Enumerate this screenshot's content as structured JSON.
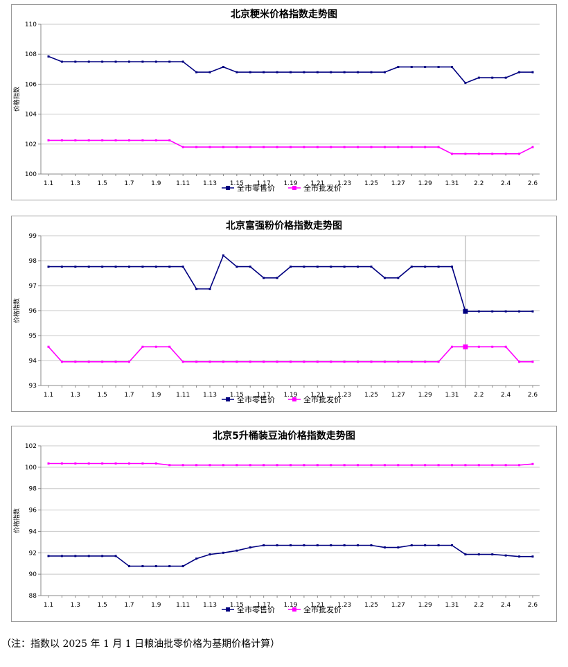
{
  "chart_data": [
    {
      "type": "line",
      "title": "北京粳米价格指数走势图",
      "ylabel": "价格指数",
      "xlabel": "",
      "ylim": [
        100,
        110
      ],
      "yticks": [
        "100",
        "102",
        "104",
        "106",
        "108",
        "110"
      ],
      "x_tick_labels": [
        "1.1",
        "1.3",
        "1.5",
        "1.7",
        "1.9",
        "1.11",
        "1.13",
        "1.15",
        "1.17",
        "1.19",
        "1.21",
        "1.23",
        "1.25",
        "1.27",
        "1.29",
        "1.31",
        "2.2",
        "2.4",
        "2.6"
      ],
      "grid": true,
      "legend_position": "bottom",
      "series": [
        {
          "name": "全市零售价",
          "color": "#000080",
          "marker": "square",
          "values": [
            107.85,
            107.5,
            107.5,
            107.5,
            107.5,
            107.5,
            107.5,
            107.5,
            107.5,
            107.5,
            107.5,
            106.8,
            106.8,
            107.15,
            106.8,
            106.8,
            106.8,
            106.8,
            106.8,
            106.8,
            106.8,
            106.8,
            106.8,
            106.8,
            106.8,
            106.8,
            107.15,
            107.15,
            107.15,
            107.15,
            107.15,
            106.08,
            106.43,
            106.43,
            106.43,
            106.8,
            106.8
          ]
        },
        {
          "name": "全市批发价",
          "color": "#ff00ff",
          "marker": "square",
          "values": [
            102.25,
            102.25,
            102.25,
            102.25,
            102.25,
            102.25,
            102.25,
            102.25,
            102.25,
            102.25,
            101.8,
            101.8,
            101.8,
            101.8,
            101.8,
            101.8,
            101.8,
            101.8,
            101.8,
            101.8,
            101.8,
            101.8,
            101.8,
            101.8,
            101.8,
            101.8,
            101.8,
            101.8,
            101.8,
            101.8,
            101.35,
            101.35,
            101.35,
            101.35,
            101.35,
            101.35,
            101.8
          ]
        }
      ]
    },
    {
      "type": "line",
      "title": "北京富强粉价格指数走势图",
      "ylabel": "价格指数",
      "xlabel": "",
      "ylim": [
        93,
        99
      ],
      "yticks": [
        "93",
        "94",
        "95",
        "96",
        "97",
        "98",
        "99"
      ],
      "x_tick_labels": [
        "1.1",
        "1.3",
        "1.5",
        "1.7",
        "1.9",
        "1.11",
        "1.13",
        "1.15",
        "1.17",
        "1.19",
        "1.21",
        "1.23",
        "1.25",
        "1.27",
        "1.29",
        "1.31",
        "2.2",
        "2.4",
        "2.6"
      ],
      "grid": true,
      "legend_position": "bottom",
      "highlight_index": 31,
      "series": [
        {
          "name": "全市零售价",
          "color": "#000080",
          "marker": "square",
          "values": [
            97.76,
            97.76,
            97.76,
            97.76,
            97.76,
            97.76,
            97.76,
            97.76,
            97.76,
            97.76,
            97.76,
            96.87,
            96.87,
            98.21,
            97.76,
            97.76,
            97.31,
            97.31,
            97.76,
            97.76,
            97.76,
            97.76,
            97.76,
            97.76,
            97.76,
            97.31,
            97.31,
            97.76,
            97.76,
            97.76,
            97.76,
            95.97,
            95.97,
            95.97,
            95.97,
            95.97,
            95.97
          ]
        },
        {
          "name": "全市批发价",
          "color": "#ff00ff",
          "marker": "square",
          "values": [
            94.55,
            93.95,
            93.95,
            93.95,
            93.95,
            93.95,
            93.95,
            94.55,
            94.55,
            94.55,
            93.95,
            93.95,
            93.95,
            93.95,
            93.95,
            93.95,
            93.95,
            93.95,
            93.95,
            93.95,
            93.95,
            93.95,
            93.95,
            93.95,
            93.95,
            93.95,
            93.95,
            93.95,
            93.95,
            93.95,
            94.55,
            94.55,
            94.55,
            94.55,
            94.55,
            93.95,
            93.95
          ]
        }
      ]
    },
    {
      "type": "line",
      "title": "北京5升桶装豆油价格指数走势图",
      "ylabel": "价格指数",
      "xlabel": "",
      "ylim": [
        88,
        102
      ],
      "yticks": [
        "88",
        "90",
        "92",
        "94",
        "96",
        "98",
        "100",
        "102"
      ],
      "x_tick_labels": [
        "1.1",
        "1.3",
        "1.5",
        "1.7",
        "1.9",
        "1.11",
        "1.13",
        "1.15",
        "1.17",
        "1.19",
        "1.21",
        "1.23",
        "1.25",
        "1.27",
        "1.29",
        "1.31",
        "2.2",
        "2.4",
        "2.6"
      ],
      "grid": true,
      "legend_position": "bottom",
      "series": [
        {
          "name": "全市零售价",
          "color": "#000080",
          "marker": "square",
          "values": [
            91.7,
            91.7,
            91.7,
            91.7,
            91.7,
            91.7,
            90.75,
            90.75,
            90.75,
            90.75,
            90.75,
            91.45,
            91.85,
            92.0,
            92.2,
            92.5,
            92.7,
            92.7,
            92.7,
            92.7,
            92.7,
            92.7,
            92.7,
            92.7,
            92.7,
            92.5,
            92.5,
            92.7,
            92.7,
            92.7,
            92.7,
            91.85,
            91.85,
            91.85,
            91.75,
            91.65,
            91.65
          ]
        },
        {
          "name": "全市批发价",
          "color": "#ff00ff",
          "marker": "square",
          "values": [
            100.35,
            100.35,
            100.35,
            100.35,
            100.35,
            100.35,
            100.35,
            100.35,
            100.35,
            100.2,
            100.2,
            100.2,
            100.2,
            100.2,
            100.2,
            100.2,
            100.2,
            100.2,
            100.2,
            100.2,
            100.2,
            100.2,
            100.2,
            100.2,
            100.2,
            100.2,
            100.2,
            100.2,
            100.2,
            100.2,
            100.2,
            100.2,
            100.2,
            100.2,
            100.2,
            100.2,
            100.3
          ]
        }
      ]
    }
  ],
  "footnote": "（注：指数以 2025 年 1 月 1 日粮油批零价格为基期价格计算）"
}
